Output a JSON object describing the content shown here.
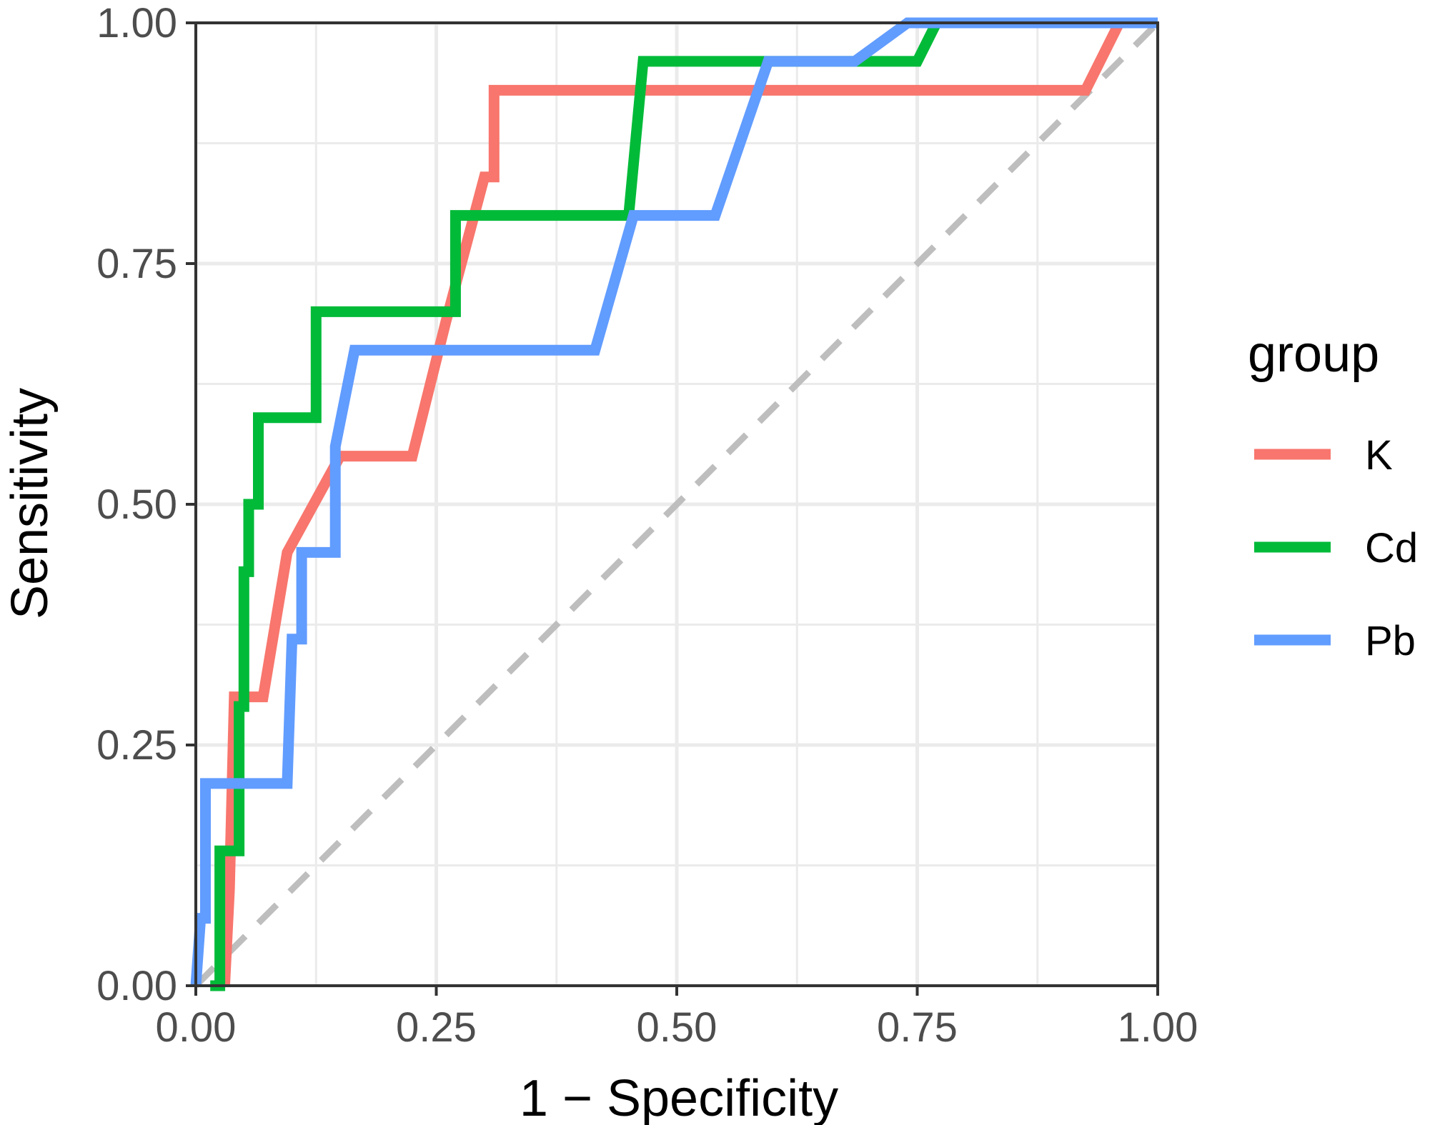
{
  "chart_data": {
    "type": "line",
    "subtype": "roc-curve",
    "title": "",
    "xlabel": "1 − Specificity",
    "ylabel": "Sensitivity",
    "xlim": [
      0,
      1
    ],
    "ylim": [
      0,
      1
    ],
    "x_ticks": [
      "0.00",
      "0.25",
      "0.50",
      "0.75",
      "1.00"
    ],
    "y_ticks": [
      "0.00",
      "0.25",
      "0.50",
      "0.75",
      "1.00"
    ],
    "grid": true,
    "legend": {
      "title": "group",
      "placement": "right"
    },
    "reference_line": {
      "from": [
        0,
        0
      ],
      "to": [
        1,
        1
      ],
      "style": "dashed",
      "color": "#bebebe"
    },
    "series": [
      {
        "name": "K",
        "color": "#F8766D",
        "points": [
          [
            0.03,
            0
          ],
          [
            0.035,
            0.1
          ],
          [
            0.04,
            0.3
          ],
          [
            0.07,
            0.3
          ],
          [
            0.095,
            0.45
          ],
          [
            0.15,
            0.55
          ],
          [
            0.225,
            0.55
          ],
          [
            0.26,
            0.69
          ],
          [
            0.3,
            0.84
          ],
          [
            0.31,
            0.84
          ],
          [
            0.31,
            0.93
          ],
          [
            0.5,
            0.93
          ],
          [
            0.75,
            0.93
          ],
          [
            0.925,
            0.93
          ],
          [
            0.96,
            1.0
          ],
          [
            1.0,
            1.0
          ]
        ]
      },
      {
        "name": "Cd",
        "color": "#00BA38",
        "points": [
          [
            0.015,
            0
          ],
          [
            0.025,
            0
          ],
          [
            0.025,
            0.14
          ],
          [
            0.045,
            0.14
          ],
          [
            0.045,
            0.29
          ],
          [
            0.05,
            0.29
          ],
          [
            0.05,
            0.43
          ],
          [
            0.055,
            0.43
          ],
          [
            0.055,
            0.5
          ],
          [
            0.065,
            0.5
          ],
          [
            0.065,
            0.59
          ],
          [
            0.125,
            0.59
          ],
          [
            0.125,
            0.7
          ],
          [
            0.27,
            0.7
          ],
          [
            0.27,
            0.8
          ],
          [
            0.45,
            0.8
          ],
          [
            0.465,
            0.96
          ],
          [
            0.75,
            0.96
          ],
          [
            0.77,
            1.0
          ],
          [
            1.0,
            1.0
          ]
        ]
      },
      {
        "name": "Pb",
        "color": "#619CFF",
        "points": [
          [
            0,
            0
          ],
          [
            0.005,
            0.07
          ],
          [
            0.01,
            0.07
          ],
          [
            0.01,
            0.21
          ],
          [
            0.095,
            0.21
          ],
          [
            0.1,
            0.36
          ],
          [
            0.11,
            0.36
          ],
          [
            0.11,
            0.45
          ],
          [
            0.145,
            0.45
          ],
          [
            0.145,
            0.56
          ],
          [
            0.165,
            0.66
          ],
          [
            0.415,
            0.66
          ],
          [
            0.455,
            0.8
          ],
          [
            0.54,
            0.8
          ],
          [
            0.595,
            0.96
          ],
          [
            0.685,
            0.96
          ],
          [
            0.74,
            1.0
          ],
          [
            1.0,
            1.0
          ]
        ]
      }
    ]
  }
}
